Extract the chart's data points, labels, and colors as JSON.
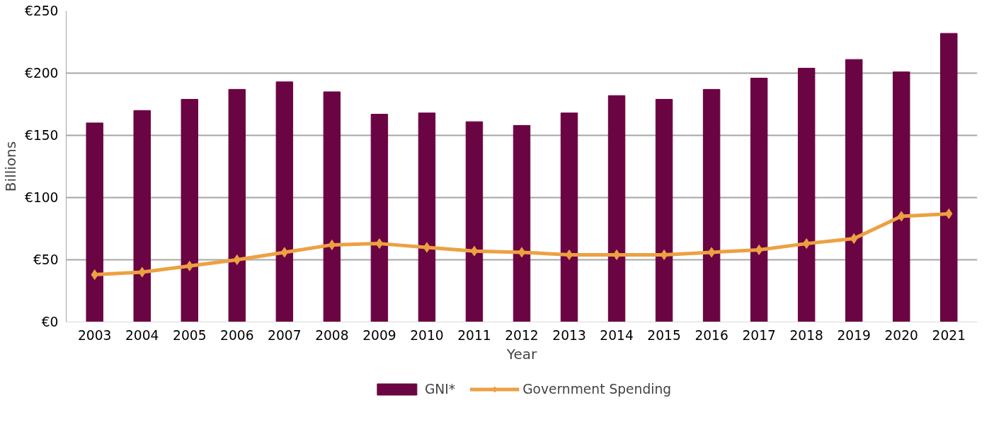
{
  "chart_data": {
    "type": "bar",
    "xlabel": "Year",
    "ylabel": "Billions",
    "categories": [
      "2003",
      "2004",
      "2005",
      "2006",
      "2007",
      "2008",
      "2009",
      "2010",
      "2011",
      "2012",
      "2013",
      "2014",
      "2015",
      "2016",
      "2017",
      "2018",
      "2019",
      "2020",
      "2021"
    ],
    "series": [
      {
        "name": "GNI*",
        "color": "#6b0442",
        "values": [
          160,
          170,
          179,
          187,
          193,
          185,
          167,
          168,
          161,
          158,
          168,
          182,
          179,
          187,
          196,
          204,
          211,
          201,
          232
        ]
      },
      {
        "name": "Government Spending",
        "type": "line",
        "color": "#eda042",
        "marker": "diamond",
        "values": [
          38,
          40,
          45,
          50,
          56,
          62,
          63,
          60,
          57,
          56,
          54,
          54,
          54,
          56,
          58,
          63,
          67,
          85,
          87
        ]
      }
    ],
    "ylim": [
      0,
      250
    ],
    "yticks": [
      {
        "value": 0,
        "label": "€0"
      },
      {
        "value": 50,
        "label": "€50"
      },
      {
        "value": 100,
        "label": "€100"
      },
      {
        "value": 150,
        "label": "€150"
      },
      {
        "value": 200,
        "label": "€200"
      },
      {
        "value": 250,
        "label": "€250"
      }
    ],
    "grid": "y",
    "legend": "bottom"
  }
}
